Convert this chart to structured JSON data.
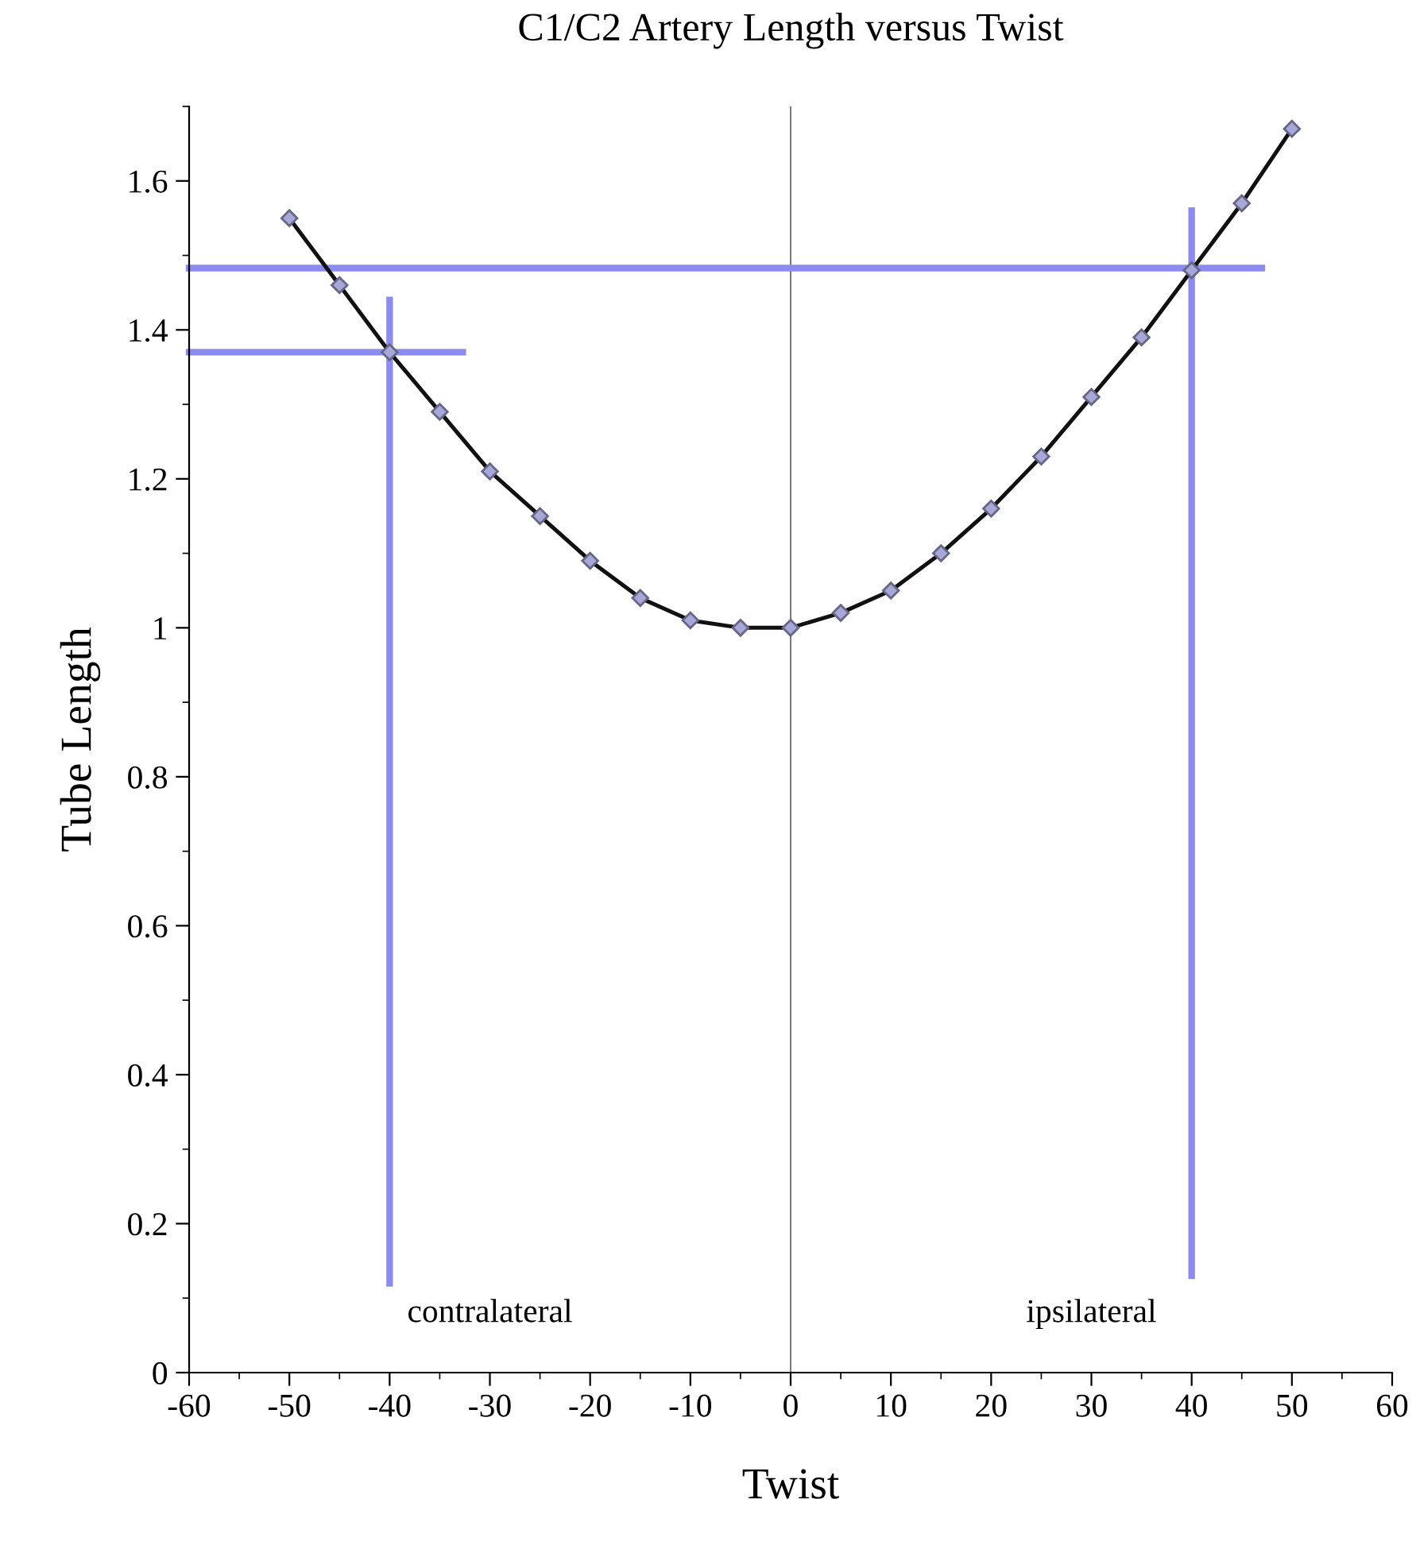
{
  "chart_data": {
    "type": "line",
    "title": "C1/C2 Artery Length versus Twist",
    "xlabel": "Twist",
    "ylabel": "Tube Length",
    "xlim": [
      -60,
      60
    ],
    "xticks": [
      -60,
      -50,
      -40,
      -30,
      -20,
      -10,
      0,
      10,
      20,
      30,
      40,
      50,
      60
    ],
    "ylim": [
      0,
      1.7
    ],
    "yticks": [
      0,
      0.2,
      0.4,
      0.6,
      0.8,
      1,
      1.2,
      1.4,
      1.6
    ],
    "grid": false,
    "legend": false,
    "marker": "diamond",
    "line_style": "solid",
    "series": [
      {
        "color": "#8c8cf0",
        "x": [
          -60,
          47
        ],
        "values": [
          1.483,
          1.483
        ],
        "marker": "none"
      },
      {
        "color": "#8c8cf0",
        "x": [
          -60,
          -32.7
        ],
        "values": [
          1.37,
          1.37
        ],
        "marker": "none"
      },
      {
        "color": "#8c8cf0",
        "x": [
          -40,
          -40
        ],
        "values": [
          0.12,
          1.44
        ],
        "marker": "none"
      },
      {
        "color": "#8c8cf0",
        "x": [
          40,
          40
        ],
        "values": [
          0.13,
          1.56
        ],
        "marker": "none"
      },
      {
        "color": "#111111",
        "x": [
          -50,
          -45,
          -40,
          -35,
          -30,
          -25,
          -20,
          -15,
          -10,
          -5,
          0,
          5,
          10,
          15,
          20,
          25,
          30,
          35,
          40,
          45,
          50
        ],
        "values": [
          1.55,
          1.46,
          1.37,
          1.29,
          1.21,
          1.15,
          1.09,
          1.04,
          1.01,
          1.0,
          1.0,
          1.02,
          1.05,
          1.1,
          1.16,
          1.23,
          1.31,
          1.39,
          1.48,
          1.57,
          1.67
        ]
      }
    ],
    "ref_lines": [
      {
        "axis": "x",
        "value": 0,
        "color": "#777777",
        "line_style": "solid"
      }
    ],
    "annotations": [
      "contralateral",
      "ipsilateral"
    ]
  }
}
